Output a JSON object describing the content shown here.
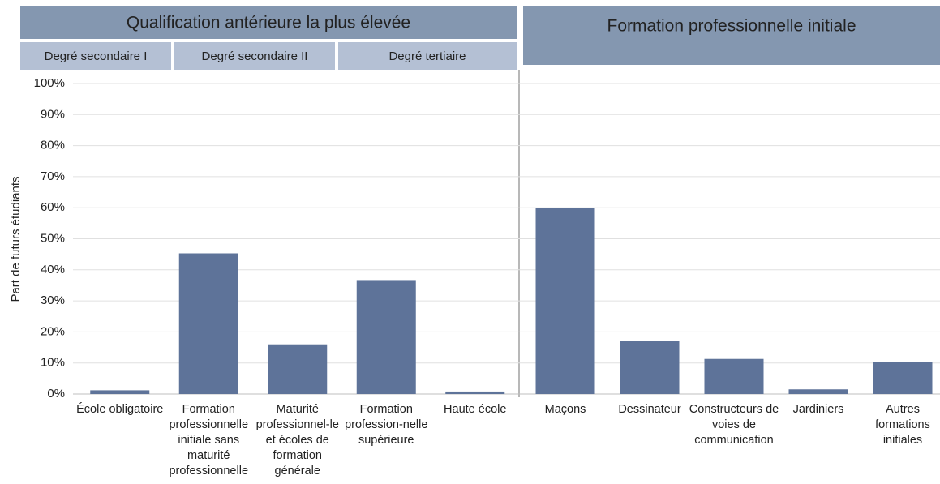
{
  "chart_data": {
    "type": "bar",
    "ylabel": "Part de futurs étudiants",
    "headers": [
      {
        "title": "Qualification antérieure la plus élevée",
        "subheaders": [
          "Degré secondaire I",
          "Degré secondaire II",
          "Degré tertiaire"
        ]
      },
      {
        "title": "Formation professionnelle initiale"
      }
    ],
    "categories": [
      "École obligatoire",
      "Formation professionnelle initiale sans maturité professionnelle",
      "Maturité professionnel-le et écoles de formation générale",
      "Formation profession-nelle supérieure",
      "Haute école",
      "Maçons",
      "Dessinateur",
      "Constructeurs de voies de communication",
      "Jardiniers",
      "Autres formations initiales"
    ],
    "values": [
      1.2,
      45.3,
      16,
      36.7,
      0.8,
      60,
      17,
      11.3,
      1.5,
      10.3
    ],
    "color": "#5e7399",
    "ylim": [
      0,
      100
    ],
    "yticks": [
      {
        "value": 0,
        "label": "0%"
      },
      {
        "value": 10,
        "label": "10%"
      },
      {
        "value": 20,
        "label": "20%"
      },
      {
        "value": 30,
        "label": "30%"
      },
      {
        "value": 40,
        "label": "40%"
      },
      {
        "value": 50,
        "label": "50%"
      },
      {
        "value": 60,
        "label": "60%"
      },
      {
        "value": 70,
        "label": "70%"
      },
      {
        "value": 80,
        "label": "80%"
      },
      {
        "value": 90,
        "label": "90%"
      },
      {
        "value": 100,
        "label": "100%"
      }
    ],
    "grid": true
  }
}
